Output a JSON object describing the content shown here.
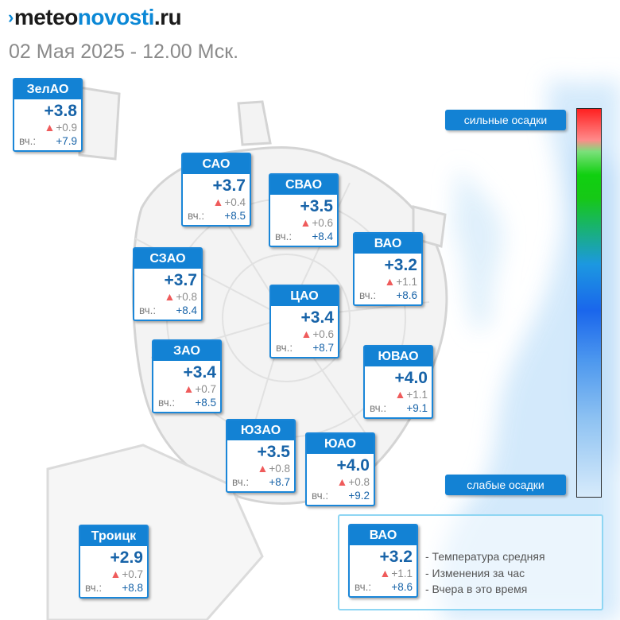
{
  "header": {
    "logo_prefix": "meteo",
    "logo_accent": "novosti",
    "logo_suffix": ".ru",
    "subtitle": "02 Мая 2025 - 12.00 Мск."
  },
  "yesterday_label": "вч.:",
  "districts": [
    {
      "name": "ЗелАО",
      "temp": "+3.8",
      "change": "+0.9",
      "yesterday": "+7.9"
    },
    {
      "name": "САО",
      "temp": "+3.7",
      "change": "+0.4",
      "yesterday": "+8.5"
    },
    {
      "name": "СВАО",
      "temp": "+3.5",
      "change": "+0.6",
      "yesterday": "+8.4"
    },
    {
      "name": "ВАО",
      "temp": "+3.2",
      "change": "+1.1",
      "yesterday": "+8.6"
    },
    {
      "name": "СЗАО",
      "temp": "+3.7",
      "change": "+0.8",
      "yesterday": "+8.4"
    },
    {
      "name": "ЦАО",
      "temp": "+3.4",
      "change": "+0.6",
      "yesterday": "+8.7"
    },
    {
      "name": "ЗАО",
      "temp": "+3.4",
      "change": "+0.7",
      "yesterday": "+8.5"
    },
    {
      "name": "ЮВАО",
      "temp": "+4.0",
      "change": "+1.1",
      "yesterday": "+9.1"
    },
    {
      "name": "ЮЗАО",
      "temp": "+3.5",
      "change": "+0.8",
      "yesterday": "+8.7"
    },
    {
      "name": "ЮАО",
      "temp": "+4.0",
      "change": "+0.8",
      "yesterday": "+9.2"
    },
    {
      "name": "Троицк",
      "temp": "+2.9",
      "change": "+0.7",
      "yesterday": "+8.8"
    }
  ],
  "precip_scale": {
    "high_label": "сильные осадки",
    "low_label": "слабые осадки",
    "colors": [
      "#ff2020",
      "#10d010",
      "#1a66ec",
      "#d7ebfb"
    ]
  },
  "legend": {
    "sample": {
      "name": "ВАО",
      "temp": "+3.2",
      "change": "+1.1",
      "yesterday": "+8.6"
    },
    "lines": [
      "- Температура средняя",
      "- Изменения за час",
      "- Вчера в это время"
    ]
  },
  "colors": {
    "brand": "#0b88d6",
    "card_header": "#1382d4",
    "temp_text": "#1763a8",
    "increase_arrow": "#ef5b5b"
  }
}
